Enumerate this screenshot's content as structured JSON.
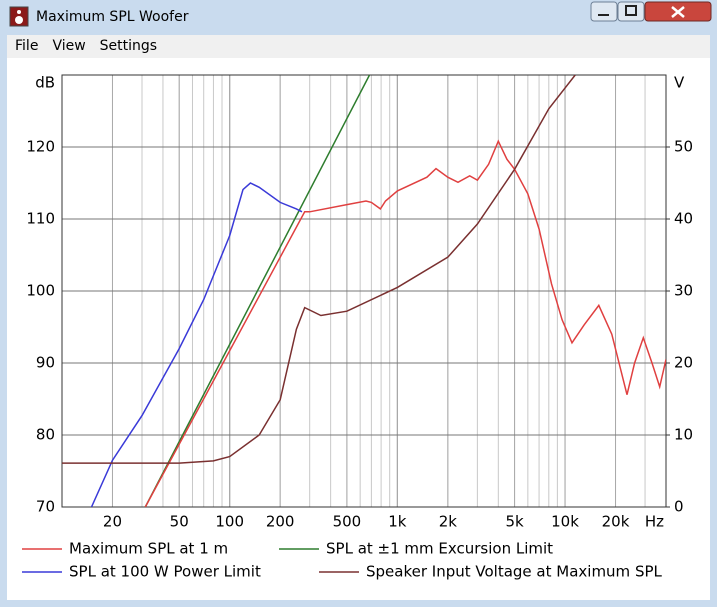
{
  "window": {
    "title": "Maximum SPL Woofer",
    "menu": [
      "File",
      "View",
      "Settings"
    ]
  },
  "chart_data": {
    "type": "line",
    "y_label": "dB",
    "y2_label": "V",
    "x_label": "Hz",
    "xlim": [
      10,
      40000
    ],
    "log_x": true,
    "xticks": [
      20,
      50,
      100,
      200,
      500,
      {
        "value": 1000,
        "label": "1k"
      },
      {
        "value": 2000,
        "label": "2k"
      },
      {
        "value": 5000,
        "label": "5k"
      },
      {
        "value": 10000,
        "label": "10k"
      },
      {
        "value": 20000,
        "label": "20k"
      }
    ],
    "ylim": [
      70,
      130
    ],
    "yticks": [
      70,
      80,
      90,
      100,
      110,
      120
    ],
    "y2lim": [
      0,
      60
    ],
    "y2ticks": [
      0,
      10,
      20,
      30,
      40,
      50
    ],
    "grid": true,
    "minor_grid": true,
    "series": [
      {
        "name": "SPL at ±1 mm Excursion Limit",
        "color": "#2e7d2e",
        "x": [
          31.4,
          682
        ],
        "values": [
          70,
          130
        ]
      },
      {
        "name": "SPL at 100 W Power Limit",
        "color": "#3a3ad8",
        "x": [
          15,
          20,
          30,
          50,
          70,
          100,
          120,
          133,
          150,
          200,
          250,
          270
        ],
        "values": [
          70,
          76.5,
          82.7,
          92,
          98.8,
          107.7,
          114.1,
          115,
          114.4,
          112.3,
          111.4,
          111
        ]
      },
      {
        "name": "Maximum SPL at 1 m",
        "color": "#e04040",
        "x": [
          31.4,
          280,
          300,
          500,
          650,
          700,
          792,
          850,
          1000,
          1500,
          1700,
          2000,
          2300,
          2700,
          3000,
          3500,
          4000,
          4500,
          5000,
          6000,
          7000,
          8300,
          9600,
          11000,
          13000,
          15900,
          19000,
          23400,
          26000,
          29300,
          33000,
          36700,
          40000
        ],
        "values": [
          70,
          111,
          111,
          112,
          112.5,
          112.3,
          111.4,
          112.5,
          113.9,
          115.8,
          117,
          115.8,
          115.1,
          116,
          115.4,
          117.6,
          120.8,
          118.3,
          116.9,
          113.5,
          108.6,
          101,
          96,
          92.8,
          95.3,
          98,
          94,
          85.6,
          90,
          93.5,
          90,
          86.7,
          90.5
        ]
      },
      {
        "name": "Speaker Input Voltage at Maximum SPL",
        "color": "#7a3030",
        "axis": "y2",
        "x": [
          10,
          50,
          80,
          100,
          150,
          200,
          250,
          280,
          350,
          500,
          1000,
          2000,
          3000,
          5000,
          8000,
          11500
        ],
        "values": [
          6.1,
          6.1,
          6.4,
          7,
          10,
          14.9,
          24.7,
          27.7,
          26.6,
          27.2,
          30.5,
          34.7,
          39.3,
          46.9,
          55.3,
          60
        ]
      }
    ]
  }
}
